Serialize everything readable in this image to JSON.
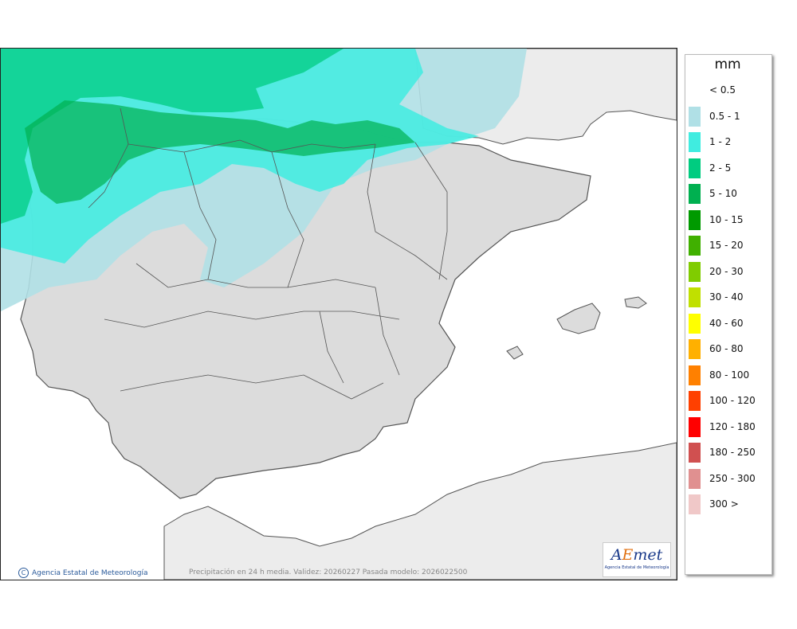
{
  "legend": {
    "unit": "mm",
    "items": [
      {
        "label": "< 0.5",
        "color": "#ffffff"
      },
      {
        "label": "0.5 - 1",
        "color": "#b0e0e6"
      },
      {
        "label": "1 - 2",
        "color": "#40ece0"
      },
      {
        "label": "2 - 5",
        "color": "#00cc80"
      },
      {
        "label": "5 - 10",
        "color": "#00b050"
      },
      {
        "label": "10 - 15",
        "color": "#009a00"
      },
      {
        "label": "15 - 20",
        "color": "#40b000"
      },
      {
        "label": "20 - 30",
        "color": "#80cc00"
      },
      {
        "label": "30 - 40",
        "color": "#c0e000"
      },
      {
        "label": "40 - 60",
        "color": "#ffff00"
      },
      {
        "label": "60 - 80",
        "color": "#ffb000"
      },
      {
        "label": "80 - 100",
        "color": "#ff8000"
      },
      {
        "label": "100 - 120",
        "color": "#ff4000"
      },
      {
        "label": "120 - 180",
        "color": "#ff0000"
      },
      {
        "label": "180 - 250",
        "color": "#d05050"
      },
      {
        "label": "250 - 300",
        "color": "#e09090"
      },
      {
        "label": "300 >",
        "color": "#f0c8c8"
      }
    ]
  },
  "footer": {
    "copyright": "Agencia Estatal de Meteorología",
    "copyright_symbol": "C",
    "validity": "Precipitación en 24 h media. Validez: 20260227 Pasada modelo: 2026022500"
  },
  "logo": {
    "text_a": "A",
    "text_e": "E",
    "text_met": "met",
    "subtitle": "Agencia Estatal de Meteorología"
  },
  "colors": {
    "sea": "#ffffff",
    "land": "#dcdcdc",
    "foreign_land": "#ececec",
    "border": "#555555"
  }
}
